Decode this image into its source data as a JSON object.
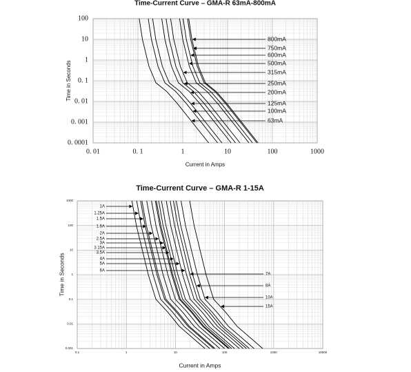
{
  "chart_data": [
    {
      "type": "line",
      "title": "Time-Current Curve – GMA-R 63mA-800mA",
      "xlabel": "Current in Amps",
      "ylabel": "Time in Seconds",
      "xscale": "log",
      "yscale": "log",
      "xlim": [
        0.01,
        1000
      ],
      "ylim": [
        0.0001,
        100
      ],
      "xticks": [
        {
          "value": 0.01,
          "label": "0. 01"
        },
        {
          "value": 0.1,
          "label": "0. 1"
        },
        1,
        10,
        100,
        1000
      ],
      "yticks": [
        {
          "value": 0.0001,
          "label": "0. 0001"
        },
        {
          "value": 0.001,
          "label": "0. 001"
        },
        {
          "value": 0.01,
          "label": "0. 01"
        },
        {
          "value": 0.1,
          "label": "0. 1"
        },
        1,
        10,
        100
      ],
      "grid": true,
      "minor_grid": true,
      "series": [
        {
          "name": "800mA",
          "color": "#000000",
          "x": [
            1.36,
            1.6,
            2.24,
            3.2,
            5.6,
            9.6,
            48
          ],
          "values": [
            100,
            10,
            0.5,
            0.08,
            0.03,
            0.008,
            0.0001
          ]
        },
        {
          "name": "750mA",
          "color": "#000000",
          "x": [
            1.28,
            1.5,
            2.1,
            3,
            5.25,
            9,
            45
          ],
          "values": [
            100,
            10,
            0.5,
            0.08,
            0.03,
            0.008,
            0.0001
          ]
        },
        {
          "name": "600mA",
          "color": "#000000",
          "x": [
            1.02,
            1.2,
            1.68,
            2.4,
            4.2,
            7.2,
            36
          ],
          "values": [
            100,
            10,
            0.5,
            0.08,
            0.03,
            0.008,
            0.0001
          ]
        },
        {
          "name": "500mA",
          "color": "#000000",
          "x": [
            0.85,
            1,
            1.4,
            2,
            3.5,
            6,
            30
          ],
          "values": [
            100,
            10,
            0.5,
            0.08,
            0.03,
            0.008,
            0.0001
          ]
        },
        {
          "name": "315mA",
          "color": "#000000",
          "x": [
            0.536,
            0.63,
            0.882,
            1.26,
            2.21,
            3.78,
            18.9
          ],
          "values": [
            100,
            10,
            0.5,
            0.08,
            0.03,
            0.008,
            0.0001
          ]
        },
        {
          "name": "250mA",
          "color": "#000000",
          "x": [
            0.425,
            0.5,
            0.7,
            1,
            1.75,
            3,
            15
          ],
          "values": [
            100,
            10,
            0.5,
            0.08,
            0.03,
            0.008,
            0.0001
          ]
        },
        {
          "name": "200mA",
          "color": "#000000",
          "x": [
            0.34,
            0.4,
            0.56,
            0.8,
            1.4,
            2.4,
            12
          ],
          "values": [
            100,
            10,
            0.5,
            0.08,
            0.03,
            0.008,
            0.0001
          ]
        },
        {
          "name": "125mA",
          "color": "#000000",
          "x": [
            0.213,
            0.25,
            0.35,
            0.5,
            0.875,
            1.5,
            7.5
          ],
          "values": [
            100,
            10,
            0.5,
            0.08,
            0.03,
            0.008,
            0.0001
          ]
        },
        {
          "name": "100mA",
          "color": "#000000",
          "x": [
            0.17,
            0.2,
            0.28,
            0.4,
            0.7,
            1.2,
            6
          ],
          "values": [
            100,
            10,
            0.5,
            0.08,
            0.03,
            0.008,
            0.0001
          ]
        },
        {
          "name": "63mA",
          "color": "#000000",
          "x": [
            0.107,
            0.126,
            0.176,
            0.252,
            0.441,
            0.756,
            3.78
          ],
          "values": [
            100,
            10,
            0.5,
            0.08,
            0.03,
            0.008,
            0.0001
          ]
        }
      ]
    },
    {
      "type": "line",
      "title": "Time-Current Curve – GMA-R 1-15A",
      "xlabel": "Current in Amps",
      "ylabel": "Time in Seconds",
      "xscale": "log",
      "yscale": "log",
      "xlim": [
        0.1,
        10000
      ],
      "ylim": [
        0.001,
        1000
      ],
      "xticks": [
        0.1,
        1,
        10,
        100,
        1000,
        10000
      ],
      "yticks": [
        0.001,
        0.01,
        0.1,
        1,
        10,
        100,
        1000
      ],
      "grid": true,
      "minor_grid": true,
      "series": [
        {
          "name": "1A",
          "color": "#000000",
          "x": [
            1.3,
            1.6,
            2.8,
            4,
            7,
            12,
            40
          ],
          "values": [
            1000,
            100,
            1,
            0.1,
            0.03,
            0.008,
            0.001
          ]
        },
        {
          "name": "1.25A",
          "color": "#000000",
          "x": [
            1.625,
            2,
            3.5,
            5,
            8.75,
            15,
            50
          ],
          "values": [
            1000,
            100,
            1,
            0.1,
            0.03,
            0.008,
            0.001
          ]
        },
        {
          "name": "1.5A",
          "color": "#000000",
          "x": [
            1.95,
            2.4,
            4.2,
            6,
            10.5,
            18,
            60
          ],
          "values": [
            1000,
            100,
            1,
            0.1,
            0.03,
            0.008,
            0.001
          ]
        },
        {
          "name": "1.6A",
          "color": "#000000",
          "x": [
            2.08,
            2.56,
            4.48,
            6.4,
            11.2,
            19.2,
            64
          ],
          "values": [
            1000,
            100,
            1,
            0.1,
            0.03,
            0.008,
            0.001
          ]
        },
        {
          "name": "2A",
          "color": "#000000",
          "x": [
            2.6,
            3.2,
            5.6,
            8,
            14,
            24,
            80
          ],
          "values": [
            1000,
            100,
            1,
            0.1,
            0.03,
            0.008,
            0.001
          ]
        },
        {
          "name": "2.5A",
          "color": "#000000",
          "x": [
            3.25,
            4,
            7,
            10,
            17.5,
            30,
            100
          ],
          "values": [
            1000,
            100,
            1,
            0.1,
            0.03,
            0.008,
            0.001
          ]
        },
        {
          "name": "3A",
          "color": "#000000",
          "x": [
            3.9,
            4.8,
            8.4,
            12,
            21,
            36,
            120
          ],
          "values": [
            1000,
            100,
            1,
            0.1,
            0.03,
            0.008,
            0.001
          ]
        },
        {
          "name": "3.15A",
          "color": "#000000",
          "x": [
            4.095,
            5.04,
            8.82,
            12.6,
            22.05,
            37.8,
            126
          ],
          "values": [
            1000,
            100,
            1,
            0.1,
            0.03,
            0.008,
            0.001
          ]
        },
        {
          "name": "3.5A",
          "color": "#000000",
          "x": [
            4.55,
            5.6,
            9.8,
            14,
            24.5,
            42,
            140
          ],
          "values": [
            1000,
            100,
            1,
            0.1,
            0.03,
            0.008,
            0.001
          ]
        },
        {
          "name": "4A",
          "color": "#000000",
          "x": [
            5.2,
            6.4,
            11.2,
            16,
            28,
            48,
            160
          ],
          "values": [
            1000,
            100,
            1,
            0.1,
            0.03,
            0.008,
            0.001
          ]
        },
        {
          "name": "5A",
          "color": "#000000",
          "x": [
            6.5,
            8,
            14,
            20,
            35,
            60,
            200
          ],
          "values": [
            1000,
            100,
            1,
            0.1,
            0.03,
            0.008,
            0.001
          ]
        },
        {
          "name": "6A",
          "color": "#000000",
          "x": [
            7.8,
            9.6,
            16.8,
            24,
            42,
            72,
            240
          ],
          "values": [
            1000,
            100,
            1,
            0.1,
            0.03,
            0.008,
            0.001
          ]
        },
        {
          "name": "7A",
          "color": "#000000",
          "x": [
            9.1,
            11.2,
            19.6,
            28,
            49,
            84,
            280
          ],
          "values": [
            1000,
            100,
            1,
            0.1,
            0.03,
            0.008,
            0.001
          ]
        },
        {
          "name": "8A",
          "color": "#000000",
          "x": [
            10.4,
            12.8,
            22.4,
            32,
            56,
            96,
            320
          ],
          "values": [
            1000,
            100,
            1,
            0.1,
            0.03,
            0.008,
            0.001
          ]
        },
        {
          "name": "10A",
          "color": "#000000",
          "x": [
            13,
            16,
            28,
            40,
            70,
            120,
            400
          ],
          "values": [
            1000,
            100,
            1,
            0.1,
            0.03,
            0.008,
            0.001
          ]
        },
        {
          "name": "15A",
          "color": "#000000",
          "x": [
            19.5,
            24,
            42,
            60,
            105,
            180,
            600
          ],
          "values": [
            1000,
            100,
            1,
            0.1,
            0.03,
            0.008,
            0.001
          ]
        }
      ]
    }
  ]
}
